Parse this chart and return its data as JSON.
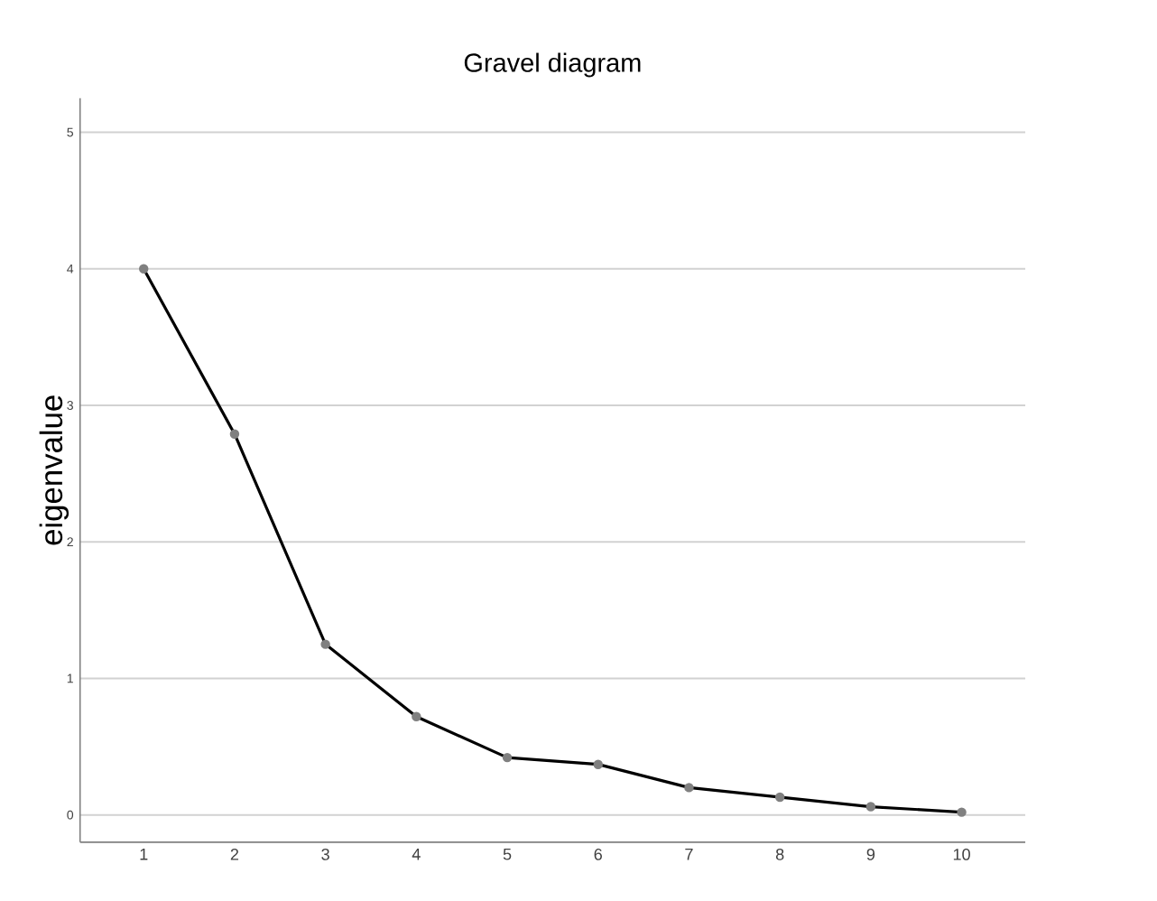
{
  "chart_data": {
    "type": "line",
    "title": "Gravel diagram",
    "ylabel": "eigenvalue",
    "categories": [
      "1",
      "2",
      "3",
      "4",
      "5",
      "6",
      "7",
      "8",
      "9",
      "10"
    ],
    "series": [
      {
        "color": "#000000",
        "values": [
          4.0,
          2.79,
          1.25,
          0.72,
          0.42,
          0.37,
          0.2,
          0.13,
          0.06,
          0.02
        ]
      }
    ],
    "ylim": [
      -0.2,
      5.25
    ],
    "yticks": [
      0,
      1,
      2,
      3,
      4,
      5
    ],
    "grid": "y",
    "marker": "circle",
    "line_style": "solid"
  }
}
